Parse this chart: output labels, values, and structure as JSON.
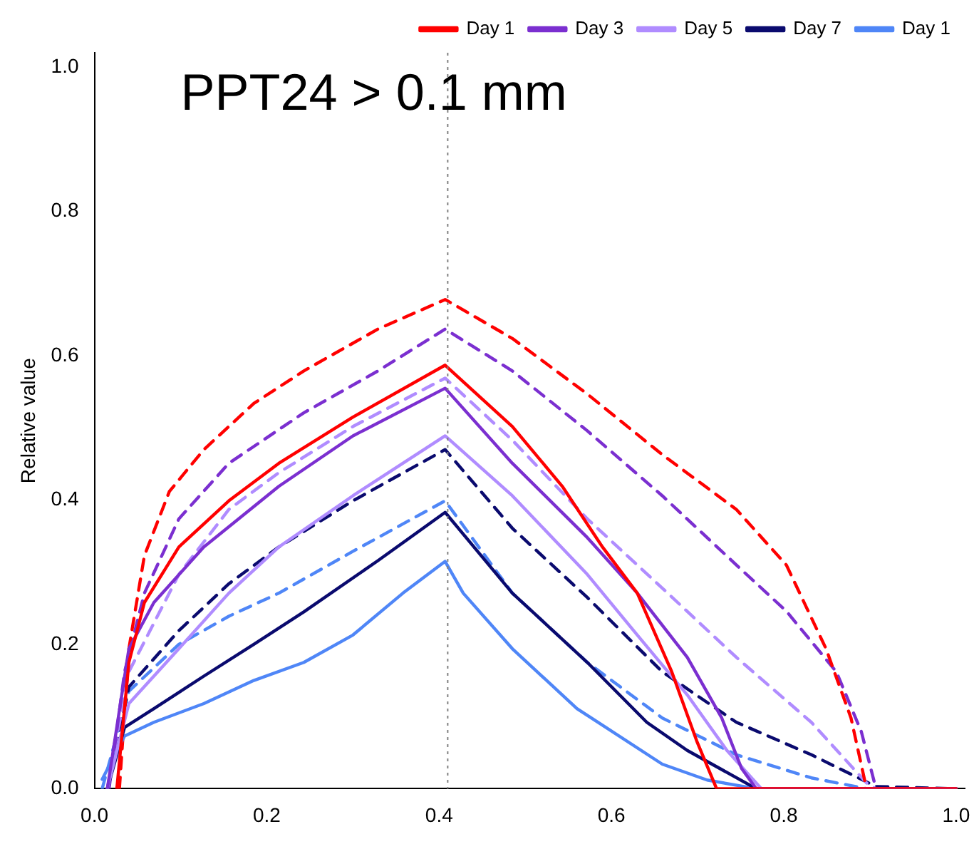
{
  "chart_data": {
    "type": "line",
    "title": "PPT24 > 0.1 mm",
    "ylabel": "Relative value",
    "xlim": [
      0,
      1.01
    ],
    "xticks": [
      {
        "value": 0,
        "label": "0.0"
      },
      0.2,
      0.4,
      0.6,
      0.8,
      {
        "value": 1,
        "label": "1.0"
      }
    ],
    "ylim": [
      0,
      1.02
    ],
    "yticks": [
      {
        "value": 0,
        "label": "0.0"
      },
      0.2,
      0.4,
      0.6,
      0.8,
      {
        "value": 1,
        "label": "1.0"
      }
    ],
    "grid": false,
    "legend": "top right",
    "marker": "none",
    "ref_lines": [
      {
        "axis": "x",
        "value": 0.41,
        "color": "#808080",
        "line_style": "dotted"
      }
    ],
    "series": [
      {
        "name": "Day 1",
        "color": "#ff0000",
        "line_style": "solid",
        "x": [
          0.026,
          0.04,
          0.058,
          0.098,
          0.156,
          0.214,
          0.3,
          0.407,
          0.485,
          0.543,
          0.589,
          0.63,
          0.67,
          0.699,
          0.722,
          1.0
        ],
        "values": [
          0,
          0.175,
          0.258,
          0.335,
          0.399,
          0.451,
          0.515,
          0.587,
          0.502,
          0.419,
          0.336,
          0.271,
          0.162,
          0.066,
          0,
          0
        ]
      },
      {
        "name": "Day 3",
        "color": "#7b2fd0",
        "line_style": "solid",
        "x": [
          0.015,
          0.04,
          0.069,
          0.127,
          0.214,
          0.3,
          0.407,
          0.485,
          0.572,
          0.63,
          0.688,
          0.728,
          0.751,
          0.768,
          1.0
        ],
        "values": [
          0,
          0.194,
          0.258,
          0.335,
          0.419,
          0.489,
          0.555,
          0.451,
          0.348,
          0.271,
          0.182,
          0.098,
          0.028,
          0,
          0
        ]
      },
      {
        "name": "Day 5",
        "color": "#b08cff",
        "line_style": "solid",
        "x": [
          0.015,
          0.04,
          0.098,
          0.156,
          0.214,
          0.3,
          0.407,
          0.485,
          0.572,
          0.63,
          0.688,
          0.734,
          0.774,
          1.0
        ],
        "values": [
          0,
          0.118,
          0.194,
          0.271,
          0.335,
          0.406,
          0.489,
          0.406,
          0.297,
          0.213,
          0.13,
          0.053,
          0,
          0
        ]
      },
      {
        "name": "Day 7",
        "color": "#0a0a6e",
        "line_style": "solid",
        "x": [
          0.015,
          0.035,
          0.069,
          0.127,
          0.185,
          0.243,
          0.329,
          0.407,
          0.485,
          0.572,
          0.641,
          0.688,
          0.768,
          1.0
        ],
        "values": [
          0,
          0.085,
          0.111,
          0.156,
          0.2,
          0.245,
          0.316,
          0.383,
          0.271,
          0.175,
          0.092,
          0.053,
          0,
          0
        ]
      },
      {
        "name": "Day 1",
        "color": "#4f86f7",
        "line_style": "solid",
        "x": [
          0.009,
          0.035,
          0.069,
          0.127,
          0.185,
          0.243,
          0.3,
          0.358,
          0.407,
          0.428,
          0.485,
          0.56,
          0.659,
          0.711,
          0.768,
          1.0
        ],
        "values": [
          0.013,
          0.073,
          0.092,
          0.118,
          0.15,
          0.175,
          0.213,
          0.271,
          0.315,
          0.271,
          0.194,
          0.111,
          0.034,
          0.012,
          0,
          0
        ]
      },
      {
        "color": "#ff0000",
        "line_style": "dashed",
        "x": [
          0.029,
          0.04,
          0.058,
          0.087,
          0.127,
          0.185,
          0.243,
          0.329,
          0.407,
          0.485,
          0.572,
          0.659,
          0.745,
          0.803,
          0.849,
          0.878,
          0.896,
          1.0
        ],
        "values": [
          0,
          0.194,
          0.323,
          0.412,
          0.47,
          0.534,
          0.579,
          0.637,
          0.678,
          0.624,
          0.547,
          0.463,
          0.387,
          0.31,
          0.194,
          0.098,
          0,
          0
        ]
      },
      {
        "color": "#7b2fd0",
        "line_style": "dashed",
        "x": [
          0.017,
          0.035,
          0.058,
          0.098,
          0.156,
          0.243,
          0.329,
          0.407,
          0.485,
          0.572,
          0.659,
          0.745,
          0.803,
          0.861,
          0.89,
          0.907,
          1.0
        ],
        "values": [
          0,
          0.162,
          0.271,
          0.374,
          0.451,
          0.521,
          0.579,
          0.637,
          0.579,
          0.496,
          0.406,
          0.31,
          0.246,
          0.162,
          0.079,
          0,
          0
        ]
      },
      {
        "color": "#b08cff",
        "line_style": "dashed",
        "x": [
          0.015,
          0.04,
          0.098,
          0.156,
          0.214,
          0.3,
          0.407,
          0.485,
          0.572,
          0.659,
          0.745,
          0.832,
          0.896,
          0.907,
          1.0
        ],
        "values": [
          0,
          0.162,
          0.297,
          0.387,
          0.438,
          0.502,
          0.569,
          0.483,
          0.374,
          0.278,
          0.182,
          0.092,
          0.008,
          0,
          0
        ]
      },
      {
        "color": "#0a0a6e",
        "line_style": "dashed",
        "x": [
          0.015,
          0.04,
          0.098,
          0.156,
          0.214,
          0.3,
          0.407,
          0.485,
          0.572,
          0.659,
          0.745,
          0.832,
          0.907,
          1.0
        ],
        "values": [
          0,
          0.141,
          0.219,
          0.284,
          0.335,
          0.399,
          0.47,
          0.361,
          0.265,
          0.162,
          0.092,
          0.047,
          0.003,
          0
        ]
      },
      {
        "color": "#4f86f7",
        "line_style": "dashed",
        "x": [
          0.009,
          0.04,
          0.098,
          0.156,
          0.214,
          0.3,
          0.407,
          0.485,
          0.572,
          0.659,
          0.745,
          0.832,
          0.896,
          1.0
        ],
        "values": [
          0,
          0.135,
          0.2,
          0.239,
          0.271,
          0.329,
          0.399,
          0.271,
          0.175,
          0.098,
          0.047,
          0.015,
          0,
          0
        ]
      }
    ]
  }
}
